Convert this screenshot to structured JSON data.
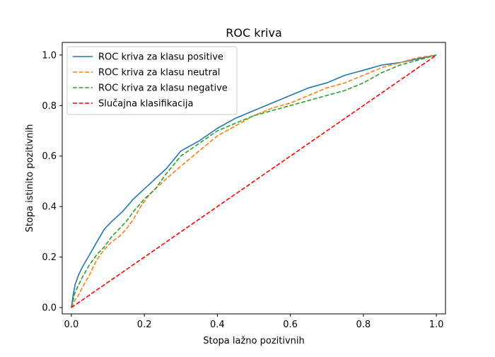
{
  "chart_data": {
    "type": "line",
    "title": "ROC kriva",
    "xlabel": "Stopa lažno pozitivnih",
    "ylabel": "Stopa istinito pozitivnih",
    "xlim": [
      -0.025,
      1.025
    ],
    "ylim": [
      -0.025,
      1.05
    ],
    "x_ticks": [
      0.0,
      0.2,
      0.4,
      0.6,
      0.8,
      1.0
    ],
    "y_ticks": [
      0.0,
      0.2,
      0.4,
      0.6,
      0.8,
      1.0
    ],
    "x_tick_labels": [
      "0.0",
      "0.2",
      "0.4",
      "0.6",
      "0.8",
      "1.0"
    ],
    "y_tick_labels": [
      "0.0",
      "0.2",
      "0.4",
      "0.6",
      "0.8",
      "1.0"
    ],
    "grid": false,
    "legend_position": "top-left",
    "series": [
      {
        "name": "ROC kriva za klasu positive",
        "color": "#1f77b4",
        "dash": "solid",
        "x": [
          0.0,
          0.005,
          0.01,
          0.02,
          0.03,
          0.05,
          0.07,
          0.09,
          0.11,
          0.14,
          0.17,
          0.2,
          0.23,
          0.26,
          0.3,
          0.35,
          0.4,
          0.45,
          0.5,
          0.55,
          0.6,
          0.65,
          0.7,
          0.75,
          0.8,
          0.85,
          0.9,
          0.95,
          1.0
        ],
        "y": [
          0.0,
          0.05,
          0.09,
          0.13,
          0.16,
          0.21,
          0.26,
          0.31,
          0.34,
          0.38,
          0.43,
          0.47,
          0.51,
          0.55,
          0.62,
          0.66,
          0.71,
          0.75,
          0.78,
          0.81,
          0.84,
          0.87,
          0.89,
          0.92,
          0.94,
          0.96,
          0.97,
          0.985,
          1.0
        ]
      },
      {
        "name": "ROC kriva za klasu neutral",
        "color": "#ff7f0e",
        "dash": "dashed",
        "x": [
          0.0,
          0.01,
          0.02,
          0.03,
          0.05,
          0.07,
          0.09,
          0.11,
          0.13,
          0.15,
          0.17,
          0.19,
          0.21,
          0.23,
          0.26,
          0.3,
          0.35,
          0.4,
          0.45,
          0.5,
          0.55,
          0.6,
          0.65,
          0.7,
          0.75,
          0.8,
          0.85,
          0.9,
          0.95,
          1.0
        ],
        "y": [
          0.0,
          0.03,
          0.05,
          0.08,
          0.13,
          0.19,
          0.23,
          0.26,
          0.28,
          0.31,
          0.35,
          0.4,
          0.44,
          0.47,
          0.51,
          0.56,
          0.62,
          0.68,
          0.72,
          0.76,
          0.79,
          0.81,
          0.84,
          0.87,
          0.89,
          0.92,
          0.95,
          0.97,
          0.99,
          1.0
        ]
      },
      {
        "name": "ROC kriva za klasu negative",
        "color": "#2ca02c",
        "dash": "dashed",
        "x": [
          0.0,
          0.01,
          0.02,
          0.03,
          0.05,
          0.07,
          0.09,
          0.11,
          0.13,
          0.15,
          0.17,
          0.2,
          0.23,
          0.26,
          0.3,
          0.35,
          0.4,
          0.45,
          0.5,
          0.55,
          0.6,
          0.65,
          0.7,
          0.75,
          0.8,
          0.85,
          0.9,
          0.95,
          1.0
        ],
        "y": [
          0.0,
          0.06,
          0.09,
          0.12,
          0.17,
          0.21,
          0.24,
          0.28,
          0.31,
          0.34,
          0.38,
          0.43,
          0.47,
          0.53,
          0.6,
          0.65,
          0.7,
          0.73,
          0.76,
          0.78,
          0.8,
          0.82,
          0.84,
          0.86,
          0.89,
          0.93,
          0.96,
          0.98,
          1.0
        ]
      },
      {
        "name": "Slučajna klasifikacija",
        "color": "#ff0000",
        "dash": "dashed",
        "x": [
          0.0,
          1.0
        ],
        "y": [
          0.0,
          1.0
        ]
      }
    ]
  }
}
